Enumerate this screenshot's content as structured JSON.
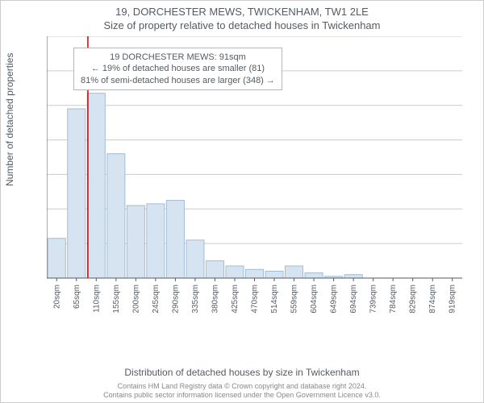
{
  "header": {
    "address": "19, DORCHESTER MEWS, TWICKENHAM, TW1 2LE",
    "subtitle": "Size of property relative to detached houses in Twickenham"
  },
  "axes": {
    "ylabel": "Number of detached properties",
    "xlabel": "Distribution of detached houses by size in Twickenham"
  },
  "attribution": {
    "line1": "Contains HM Land Registry data © Crown copyright and database right 2024.",
    "line2": "Contains public sector information licensed under the Open Government Licence v3.0."
  },
  "annotation": {
    "line1": "19 DORCHESTER MEWS: 91sqm",
    "line2": "← 19% of detached houses are smaller (81)",
    "line3": "81% of semi-detached houses are larger (348) →"
  },
  "chart": {
    "type": "histogram",
    "bar_fill": "#d6e4f2",
    "bar_stroke": "#a3bcd6",
    "grid_color": "#cccccc",
    "text_color": "#555b61",
    "marker_color": "#cc0000",
    "background": "#ffffff",
    "ylim": [
      0,
      140
    ],
    "ytick_step": 20,
    "marker_x_value": 91,
    "x_categories": [
      "20sqm",
      "65sqm",
      "110sqm",
      "155sqm",
      "200sqm",
      "245sqm",
      "290sqm",
      "335sqm",
      "380sqm",
      "425sqm",
      "470sqm",
      "514sqm",
      "559sqm",
      "604sqm",
      "649sqm",
      "694sqm",
      "739sqm",
      "784sqm",
      "829sqm",
      "874sqm",
      "919sqm"
    ],
    "values": [
      23,
      98,
      107,
      72,
      42,
      43,
      45,
      22,
      10,
      7,
      5,
      4,
      7,
      3,
      1,
      2,
      0,
      0,
      0,
      0,
      0
    ],
    "bar_width_ratio": 0.9,
    "title_fontsize": 13,
    "label_fontsize": 12,
    "tick_fontsize_y": 11,
    "tick_fontsize_x": 10
  }
}
